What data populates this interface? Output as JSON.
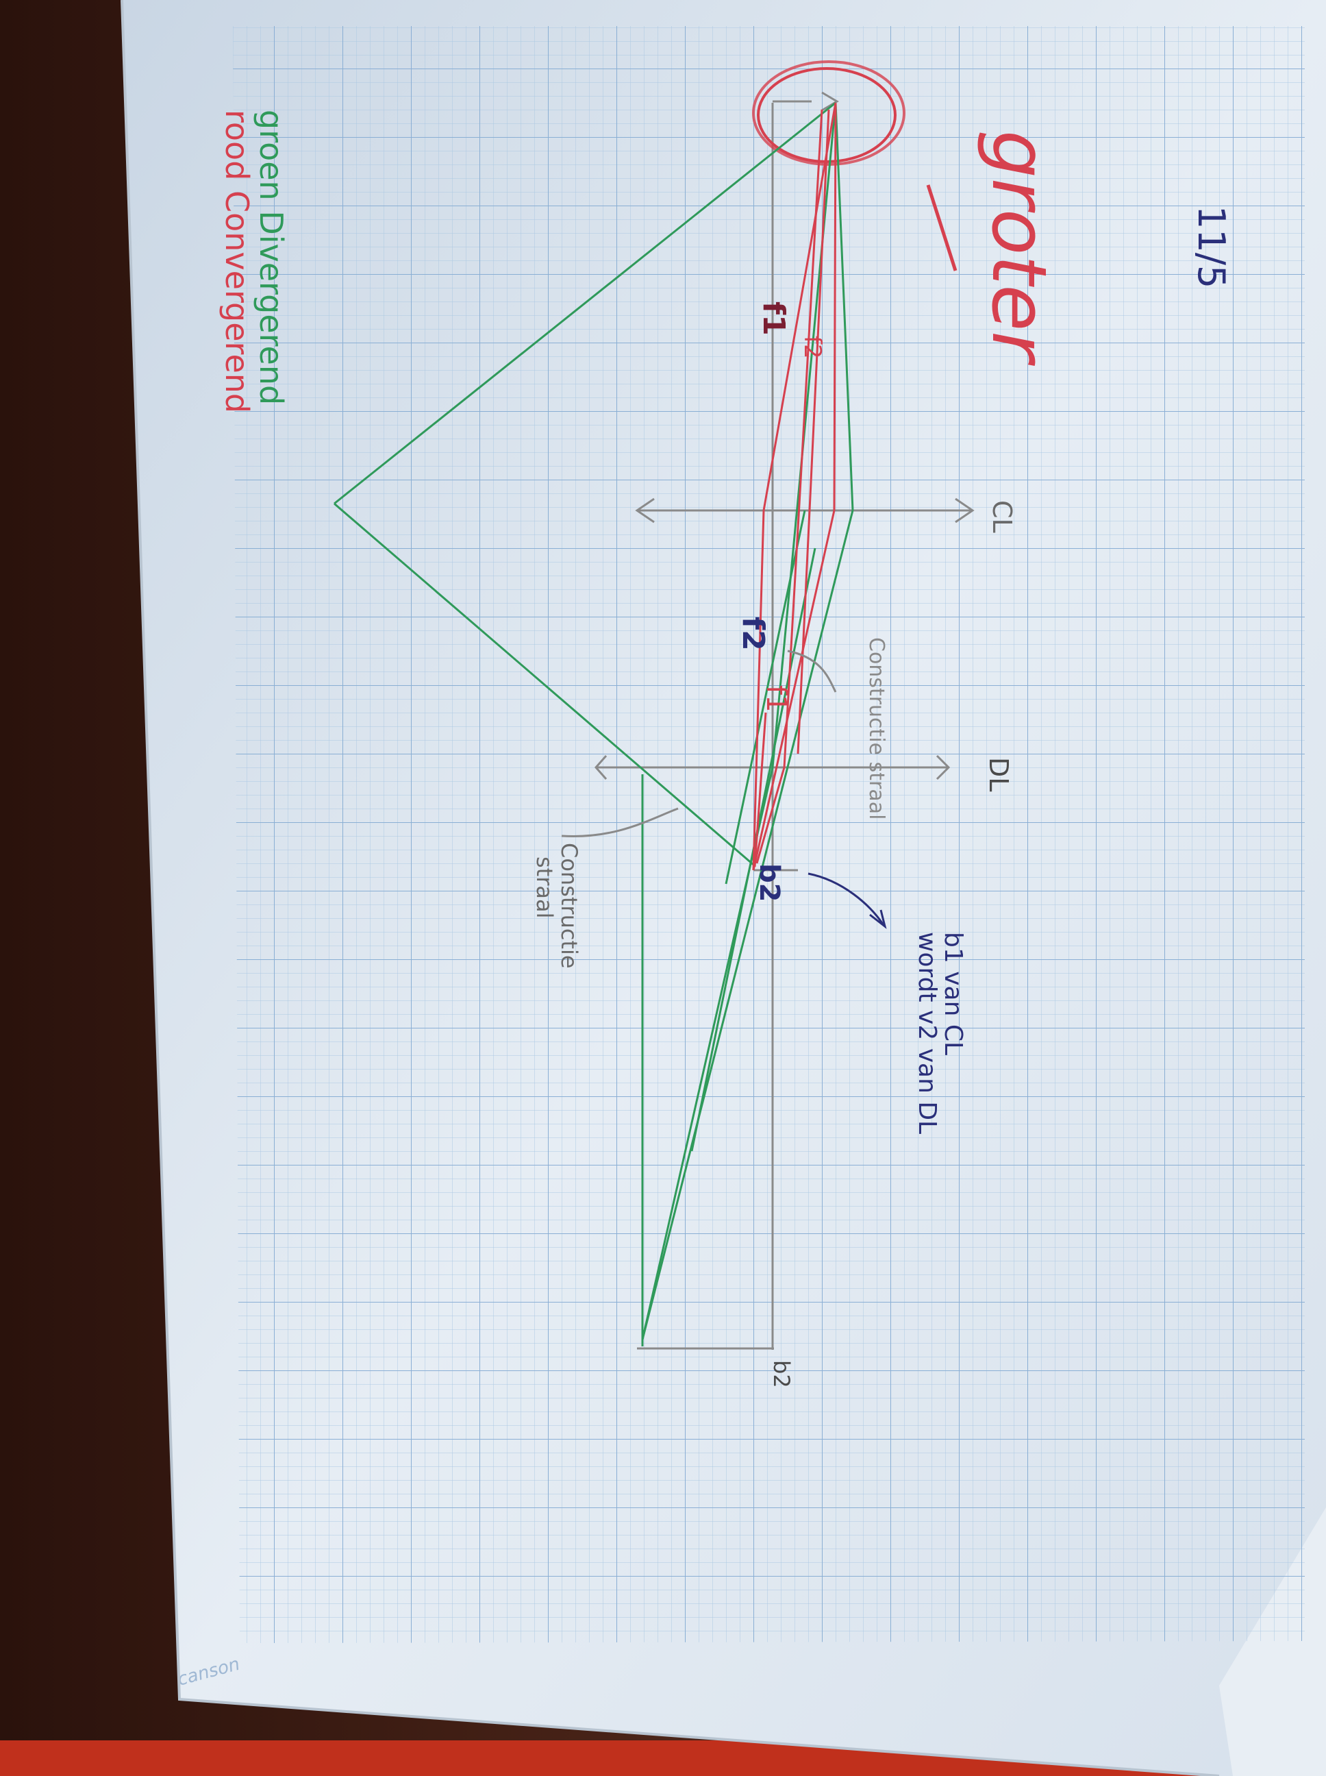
{
  "page_number": "11/5",
  "title": "groter",
  "legend": {
    "green_text": "groen Divergerend",
    "red_text": "rood Convergerend"
  },
  "lens_labels": {
    "cl": "CL",
    "dl": "DL"
  },
  "point_labels": {
    "f1_left": "f1",
    "f2_top": "f2",
    "f2_left": "f2",
    "f1_right": "f1",
    "b2_right": "b2",
    "b2_corner": "b2"
  },
  "annotations": {
    "construction_ray_1": "Constructie straal",
    "construction_ray_2_line1": "Constructie",
    "construction_ray_2_line2": "straal",
    "note_line1": "b1 van CL",
    "note_line2": "wordt v2 van DL"
  },
  "brand": "canson",
  "colors": {
    "paper": "#dce6ef",
    "grid": "#9fc0de",
    "green_ink": "#2f9a5a",
    "red_ink": "#d6404e",
    "pencil": "#8a8a8a",
    "blue_ink": "#2a2f7a",
    "table": "#3a1a12"
  }
}
